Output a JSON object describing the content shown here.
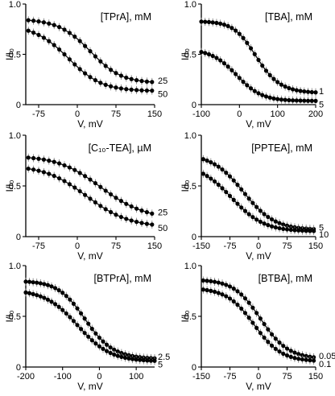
{
  "chart_data": [
    {
      "type": "scatter",
      "title": "[TPrA], mM",
      "xlabel": "V, mV",
      "ylabel": "I/I₀",
      "xlim": [
        -100,
        150
      ],
      "ylim": [
        0,
        1.0
      ],
      "xticks": [
        -75,
        0,
        75,
        150
      ],
      "xtick_labels": [
        "-75",
        "0",
        "75",
        "150"
      ],
      "yticks": [
        0,
        0.5,
        1.0
      ],
      "ytick_labels": [
        "0",
        "0.5",
        "1.0"
      ],
      "series": [
        {
          "name": "25",
          "x": [
            -95,
            -85,
            -75,
            -65,
            -55,
            -45,
            -35,
            -25,
            -15,
            -5,
            5,
            15,
            25,
            35,
            45,
            55,
            65,
            75,
            85,
            95,
            105,
            115,
            125,
            135,
            145
          ],
          "y": [
            0.839,
            0.834,
            0.827,
            0.818,
            0.806,
            0.791,
            0.771,
            0.745,
            0.713,
            0.676,
            0.632,
            0.583,
            0.531,
            0.48,
            0.43,
            0.385,
            0.346,
            0.314,
            0.288,
            0.268,
            0.254,
            0.243,
            0.235,
            0.229,
            0.225
          ]
        },
        {
          "name": "50",
          "x": [
            -95,
            -85,
            -75,
            -65,
            -55,
            -45,
            -35,
            -25,
            -15,
            -5,
            5,
            15,
            25,
            35,
            45,
            55,
            65,
            75,
            85,
            95,
            105,
            115,
            125,
            135,
            145
          ],
          "y": [
            0.735,
            0.716,
            0.693,
            0.665,
            0.631,
            0.592,
            0.548,
            0.5,
            0.45,
            0.4,
            0.353,
            0.311,
            0.274,
            0.243,
            0.217,
            0.197,
            0.182,
            0.17,
            0.161,
            0.154,
            0.149,
            0.145,
            0.142,
            0.14,
            0.139
          ]
        }
      ]
    },
    {
      "type": "scatter",
      "title": "[TBA], mM",
      "xlabel": "V, mV",
      "ylabel": "I/I₀",
      "xlim": [
        -100,
        200
      ],
      "ylim": [
        0,
        1.0
      ],
      "xticks": [
        -100,
        0,
        100,
        200
      ],
      "xtick_labels": [
        "-100",
        "0",
        "100",
        "200"
      ],
      "yticks": [
        0,
        0.5,
        1.0
      ],
      "ytick_labels": [
        "0",
        "0.5",
        "1.0"
      ],
      "series": [
        {
          "name": "1",
          "x": [
            -100,
            -90,
            -80,
            -70,
            -60,
            -50,
            -40,
            -30,
            -20,
            -10,
            0,
            10,
            20,
            30,
            40,
            50,
            60,
            70,
            80,
            90,
            100,
            110,
            120,
            130,
            140,
            150,
            160,
            170,
            180,
            190,
            200
          ],
          "y": [
            0.825,
            0.823,
            0.821,
            0.817,
            0.812,
            0.805,
            0.795,
            0.781,
            0.762,
            0.736,
            0.703,
            0.662,
            0.614,
            0.56,
            0.502,
            0.444,
            0.388,
            0.337,
            0.293,
            0.255,
            0.224,
            0.199,
            0.18,
            0.164,
            0.152,
            0.143,
            0.136,
            0.131,
            0.127,
            0.124,
            0.122
          ]
        },
        {
          "name": "5",
          "x": [
            -100,
            -90,
            -80,
            -70,
            -60,
            -50,
            -40,
            -30,
            -20,
            -10,
            0,
            10,
            20,
            30,
            40,
            50,
            60,
            70,
            80,
            90,
            100,
            110,
            120,
            130,
            140,
            150,
            160,
            170,
            180,
            190,
            200
          ],
          "y": [
            0.523,
            0.513,
            0.5,
            0.484,
            0.464,
            0.44,
            0.411,
            0.378,
            0.342,
            0.304,
            0.265,
            0.227,
            0.193,
            0.162,
            0.135,
            0.113,
            0.095,
            0.081,
            0.07,
            0.061,
            0.055,
            0.05,
            0.047,
            0.044,
            0.042,
            0.041,
            0.04,
            0.039,
            0.038,
            0.038,
            0.037
          ]
        }
      ]
    },
    {
      "type": "scatter",
      "title": "[C₁₀-TEA], µM",
      "xlabel": "V, mV",
      "ylabel": "I/I₀",
      "xlim": [
        -100,
        150
      ],
      "ylim": [
        0,
        1.0
      ],
      "xticks": [
        -75,
        0,
        75,
        150
      ],
      "xtick_labels": [
        "-75",
        "0",
        "75",
        "150"
      ],
      "yticks": [
        0,
        0.5,
        1.0
      ],
      "ytick_labels": [
        "0",
        "0.5",
        "1.0"
      ],
      "series": [
        {
          "name": "25",
          "x": [
            -95,
            -85,
            -75,
            -65,
            -55,
            -45,
            -35,
            -25,
            -15,
            -5,
            5,
            15,
            25,
            35,
            45,
            55,
            65,
            75,
            85,
            95,
            105,
            115,
            125,
            135,
            145
          ],
          "y": [
            0.779,
            0.774,
            0.768,
            0.76,
            0.749,
            0.737,
            0.722,
            0.703,
            0.682,
            0.657,
            0.628,
            0.597,
            0.563,
            0.527,
            0.49,
            0.453,
            0.417,
            0.383,
            0.352,
            0.323,
            0.298,
            0.276,
            0.257,
            0.241,
            0.227
          ]
        },
        {
          "name": "50",
          "x": [
            -95,
            -85,
            -75,
            -65,
            -55,
            -45,
            -35,
            -25,
            -15,
            -5,
            5,
            15,
            25,
            35,
            45,
            55,
            65,
            75,
            85,
            95,
            105,
            115,
            125,
            135,
            145
          ],
          "y": [
            0.67,
            0.661,
            0.65,
            0.636,
            0.619,
            0.599,
            0.575,
            0.548,
            0.517,
            0.484,
            0.448,
            0.411,
            0.374,
            0.338,
            0.303,
            0.271,
            0.242,
            0.216,
            0.194,
            0.175,
            0.159,
            0.146,
            0.135,
            0.126,
            0.119
          ]
        }
      ]
    },
    {
      "type": "scatter",
      "title": "[PPTEA], mM",
      "xlabel": "V, mV",
      "ylabel": "I/I₀",
      "xlim": [
        -150,
        150
      ],
      "ylim": [
        0,
        1.0
      ],
      "xticks": [
        -150,
        -75,
        0,
        75,
        150
      ],
      "xtick_labels": [
        "-150",
        "-75",
        "0",
        "75",
        "150"
      ],
      "yticks": [
        0,
        0.5,
        1.0
      ],
      "ytick_labels": [
        "0",
        "0.5",
        "1.0"
      ],
      "series": [
        {
          "name": "5",
          "x": [
            -145,
            -135,
            -125,
            -115,
            -105,
            -95,
            -85,
            -75,
            -65,
            -55,
            -45,
            -35,
            -25,
            -15,
            -5,
            5,
            15,
            25,
            35,
            45,
            55,
            65,
            75,
            85,
            95,
            105,
            115,
            125,
            135,
            145
          ],
          "y": [
            0.764,
            0.75,
            0.733,
            0.713,
            0.69,
            0.662,
            0.63,
            0.594,
            0.554,
            0.511,
            0.466,
            0.42,
            0.375,
            0.332,
            0.292,
            0.255,
            0.222,
            0.194,
            0.17,
            0.15,
            0.133,
            0.119,
            0.108,
            0.099,
            0.092,
            0.087,
            0.083,
            0.08,
            0.077,
            0.075
          ]
        },
        {
          "name": "10",
          "x": [
            -145,
            -135,
            -125,
            -115,
            -105,
            -95,
            -85,
            -75,
            -65,
            -55,
            -45,
            -35,
            -25,
            -15,
            -5,
            5,
            15,
            25,
            35,
            45,
            55,
            65,
            75,
            85,
            95,
            105,
            115,
            125,
            135,
            145
          ],
          "y": [
            0.62,
            0.598,
            0.572,
            0.544,
            0.512,
            0.477,
            0.44,
            0.401,
            0.362,
            0.324,
            0.287,
            0.253,
            0.221,
            0.193,
            0.168,
            0.147,
            0.129,
            0.114,
            0.101,
            0.091,
            0.083,
            0.076,
            0.071,
            0.067,
            0.063,
            0.061,
            0.059,
            0.057,
            0.056,
            0.055
          ]
        }
      ]
    },
    {
      "type": "scatter",
      "title": "[BTPrA], mM",
      "xlabel": "V, mV",
      "ylabel": "I/I₀",
      "xlim": [
        -200,
        150
      ],
      "ylim": [
        0,
        1.0
      ],
      "xticks": [
        -200,
        -100,
        0,
        100
      ],
      "xtick_labels": [
        "-200",
        "-100",
        "0",
        "100"
      ],
      "yticks": [
        0,
        0.5,
        1.0
      ],
      "ytick_labels": [
        "0",
        "0.5",
        "1.0"
      ],
      "series": [
        {
          "name": "2.5",
          "x": [
            -200,
            -190,
            -180,
            -170,
            -160,
            -150,
            -140,
            -130,
            -120,
            -110,
            -100,
            -90,
            -80,
            -70,
            -60,
            -50,
            -40,
            -30,
            -20,
            -10,
            0,
            10,
            20,
            30,
            40,
            50,
            60,
            70,
            80,
            90,
            100,
            110,
            120,
            130,
            140,
            150
          ],
          "y": [
            0.842,
            0.84,
            0.836,
            0.832,
            0.826,
            0.818,
            0.808,
            0.795,
            0.778,
            0.757,
            0.732,
            0.701,
            0.665,
            0.624,
            0.578,
            0.529,
            0.478,
            0.427,
            0.377,
            0.331,
            0.289,
            0.252,
            0.22,
            0.193,
            0.171,
            0.153,
            0.138,
            0.126,
            0.116,
            0.108,
            0.102,
            0.097,
            0.093,
            0.09,
            0.088,
            0.086
          ]
        },
        {
          "name": "5",
          "x": [
            -200,
            -190,
            -180,
            -170,
            -160,
            -150,
            -140,
            -130,
            -120,
            -110,
            -100,
            -90,
            -80,
            -70,
            -60,
            -50,
            -40,
            -30,
            -20,
            -10,
            0,
            10,
            20,
            30,
            40,
            50,
            60,
            70,
            80,
            90,
            100,
            110,
            120,
            130,
            140,
            150
          ],
          "y": [
            0.735,
            0.728,
            0.719,
            0.709,
            0.697,
            0.682,
            0.664,
            0.644,
            0.62,
            0.593,
            0.562,
            0.528,
            0.492,
            0.454,
            0.414,
            0.375,
            0.336,
            0.299,
            0.264,
            0.232,
            0.204,
            0.179,
            0.157,
            0.139,
            0.123,
            0.11,
            0.1,
            0.091,
            0.084,
            0.078,
            0.073,
            0.07,
            0.067,
            0.064,
            0.062,
            0.061
          ]
        }
      ]
    },
    {
      "type": "scatter",
      "title": "[BTBA], mM",
      "xlabel": "V, mV",
      "ylabel": "I/I₀",
      "xlim": [
        -150,
        150
      ],
      "ylim": [
        0,
        1.0
      ],
      "xticks": [
        -150,
        -75,
        0,
        75,
        150
      ],
      "xtick_labels": [
        "-150",
        "-75",
        "0",
        "75",
        "150"
      ],
      "yticks": [
        0,
        0.5,
        1.0
      ],
      "ytick_labels": [
        "0",
        "0.5",
        "1.0"
      ],
      "series": [
        {
          "name": "0.05",
          "x": [
            -145,
            -135,
            -125,
            -115,
            -105,
            -95,
            -85,
            -75,
            -65,
            -55,
            -45,
            -35,
            -25,
            -15,
            -5,
            5,
            15,
            25,
            35,
            45,
            55,
            65,
            75,
            85,
            95,
            105,
            115,
            125,
            135,
            145
          ],
          "y": [
            0.853,
            0.85,
            0.846,
            0.84,
            0.833,
            0.823,
            0.81,
            0.794,
            0.773,
            0.747,
            0.715,
            0.677,
            0.634,
            0.585,
            0.533,
            0.478,
            0.424,
            0.371,
            0.322,
            0.279,
            0.241,
            0.209,
            0.182,
            0.16,
            0.142,
            0.128,
            0.117,
            0.108,
            0.101,
            0.096
          ]
        },
        {
          "name": "0.1",
          "x": [
            -145,
            -135,
            -125,
            -115,
            -105,
            -95,
            -85,
            -75,
            -65,
            -55,
            -45,
            -35,
            -25,
            -15,
            -5,
            5,
            15,
            25,
            35,
            45,
            55,
            65,
            75,
            85,
            95,
            105,
            115,
            125,
            135,
            145
          ],
          "y": [
            0.764,
            0.758,
            0.751,
            0.742,
            0.73,
            0.716,
            0.698,
            0.675,
            0.647,
            0.614,
            0.576,
            0.533,
            0.486,
            0.436,
            0.386,
            0.336,
            0.29,
            0.248,
            0.211,
            0.179,
            0.153,
            0.131,
            0.114,
            0.1,
            0.089,
            0.081,
            0.075,
            0.07,
            0.066,
            0.063
          ]
        }
      ]
    }
  ]
}
